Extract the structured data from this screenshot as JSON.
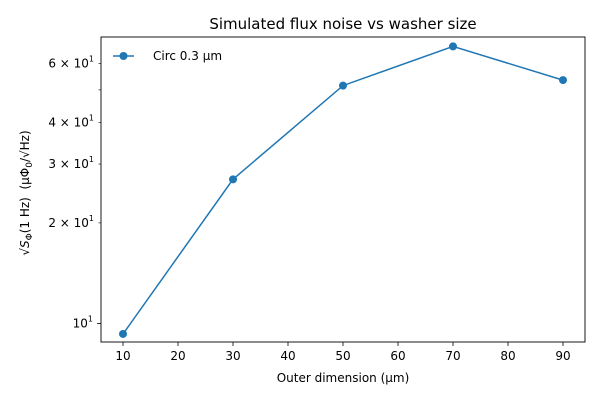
{
  "chart_data": {
    "type": "line",
    "title": "Simulated flux noise vs washer size",
    "xlabel": "Outer dimension (µm)",
    "ylabel_main": "S",
    "ylabel_sub": "Φ",
    "ylabel_paren": "(1 Hz)",
    "ylabel_unit_pre": "(µΦ",
    "ylabel_unit_sub": "0",
    "ylabel_unit_post": "/√Hz)",
    "x": [
      10,
      30,
      50,
      70,
      90
    ],
    "series": [
      {
        "name": "Circ 0.3 µm",
        "values": [
          9.3,
          27.0,
          51.5,
          67.5,
          53.5
        ],
        "color": "#1f77b4"
      }
    ],
    "xlim": [
      6,
      94
    ],
    "ylim": [
      8.8,
      72
    ],
    "y_scale": "log",
    "x_ticks": [
      10,
      20,
      30,
      40,
      50,
      60,
      70,
      80,
      90
    ],
    "y_major_ticks": [
      {
        "value": 10,
        "mant": "10",
        "exp": "1",
        "kind": "plain"
      }
    ],
    "y_minor_ticks": [
      {
        "value": 20,
        "mant": "2",
        "base": "10",
        "exp": "1"
      },
      {
        "value": 30,
        "mant": "3",
        "base": "10",
        "exp": "1"
      },
      {
        "value": 40,
        "mant": "4",
        "base": "10",
        "exp": "1"
      },
      {
        "value": 60,
        "mant": "6",
        "base": "10",
        "exp": "1"
      }
    ],
    "y_unlabeled_ticks": [
      50
    ],
    "legend_position": "top-left",
    "grid": false
  }
}
